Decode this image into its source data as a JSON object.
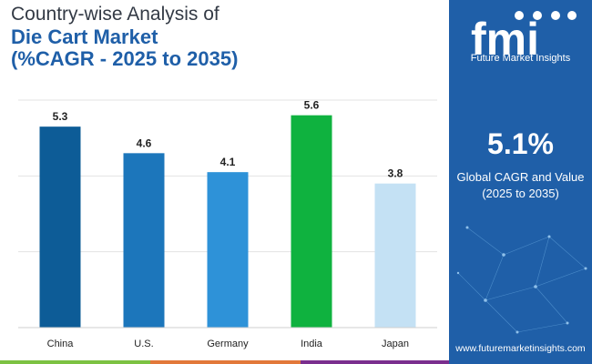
{
  "title": {
    "line1": "Country-wise Analysis of",
    "line2": "Die Cart Market",
    "line3": "(%CAGR - 2025 to 2035)"
  },
  "chart_data": {
    "type": "bar",
    "title": "Country-wise Analysis of Die Cart Market (%CAGR - 2025 to 2035)",
    "categories": [
      "China",
      "U.S.",
      "Germany",
      "India",
      "Japan"
    ],
    "values": [
      5.3,
      4.6,
      4.1,
      5.6,
      3.8
    ],
    "value_labels": [
      "5.3",
      "4.6",
      "4.1",
      "5.6",
      "3.8"
    ],
    "colors": [
      "#0d5c97",
      "#1c76bb",
      "#2e92d8",
      "#0fb23f",
      "#c4e1f4"
    ],
    "ylim": [
      0,
      6
    ],
    "grid": true,
    "xlabel": "",
    "ylabel": ""
  },
  "panel": {
    "logo_text": "fmi",
    "brand": "Future Market Insights",
    "cagr_value": "5.1%",
    "cagr_label_line1": "Global CAGR and Value",
    "cagr_label_line2": "(2025 to 2035)",
    "website": "www.futuremarketinsights.com",
    "background": "#1f5fa8"
  },
  "footer_colors": [
    "#7cc242",
    "#1f5fa8",
    "#7a2e8e"
  ]
}
